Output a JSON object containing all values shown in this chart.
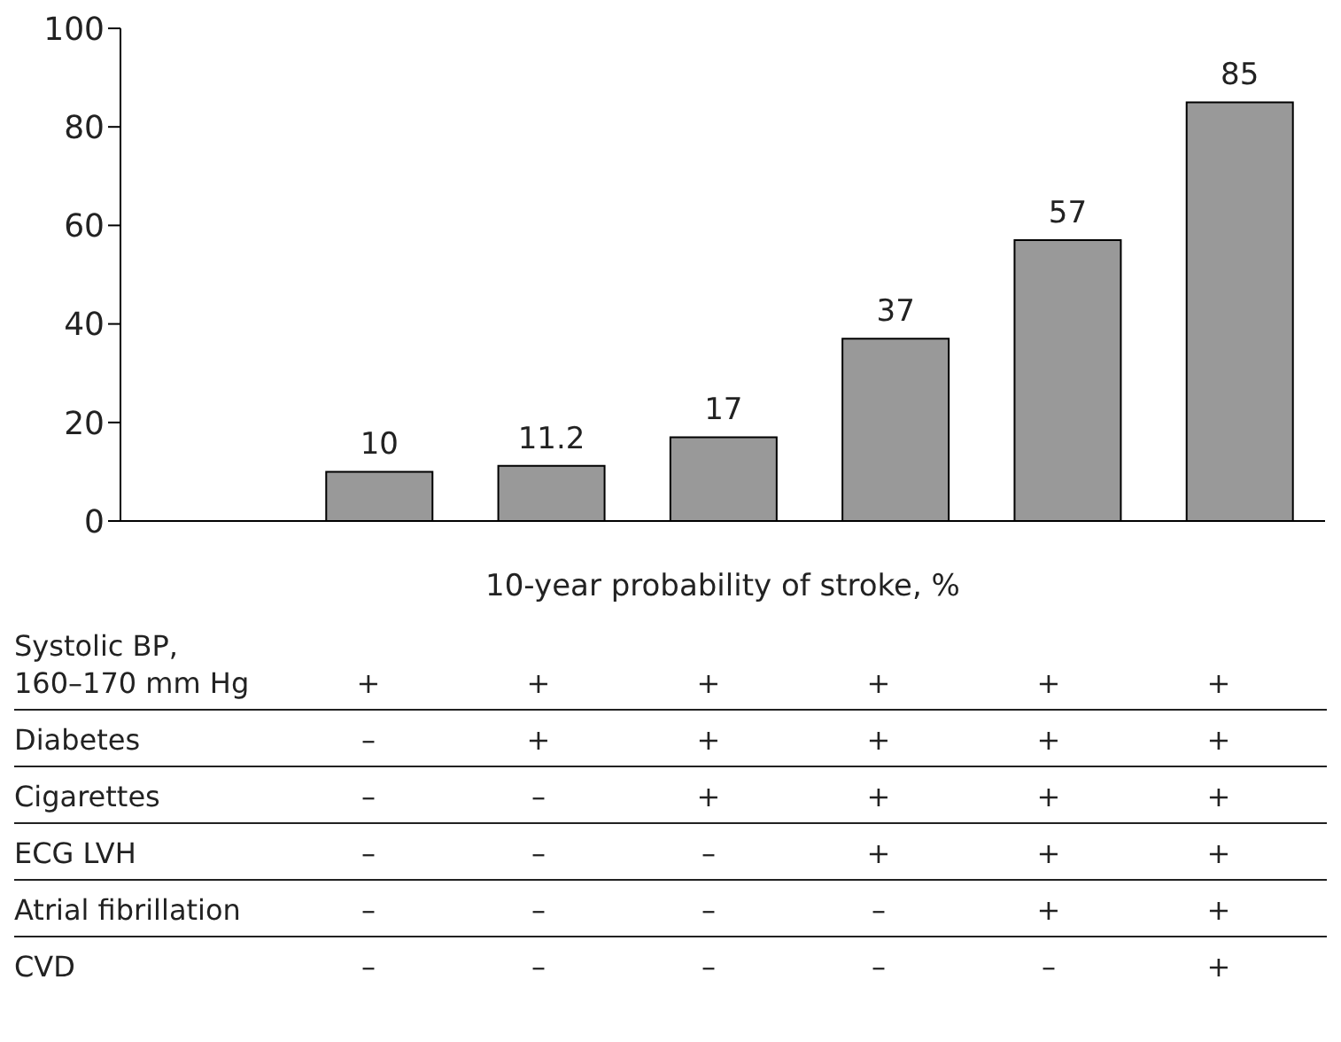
{
  "chart_data": {
    "type": "bar",
    "xlabel": "10-year probability of stroke, %",
    "categories": [
      null,
      null,
      null,
      null,
      null,
      null,
      null
    ],
    "values": [
      null,
      10,
      11.2,
      17,
      37,
      57,
      85
    ],
    "color": "#999999",
    "ylim": [
      0,
      100
    ],
    "yticks": [
      0,
      20,
      40,
      60,
      80,
      100
    ],
    "data_labels": true,
    "grid": false,
    "legend": false,
    "annotations": [
      "Systolic BP,\n160–170 mm Hg",
      "+",
      "+",
      "+",
      "+",
      "+",
      "+",
      "Diabetes",
      "–",
      "+",
      "+",
      "+",
      "+",
      "+",
      "Cigarettes",
      "–",
      "–",
      "+",
      "+",
      "+",
      "+",
      "ECG LVH",
      "–",
      "–",
      "–",
      "+",
      "+",
      "+",
      "Atrial fibrillation",
      "–",
      "–",
      "–",
      "–",
      "+",
      "+",
      "CVD",
      "–",
      "–",
      "–",
      "–",
      "–",
      "+"
    ]
  }
}
